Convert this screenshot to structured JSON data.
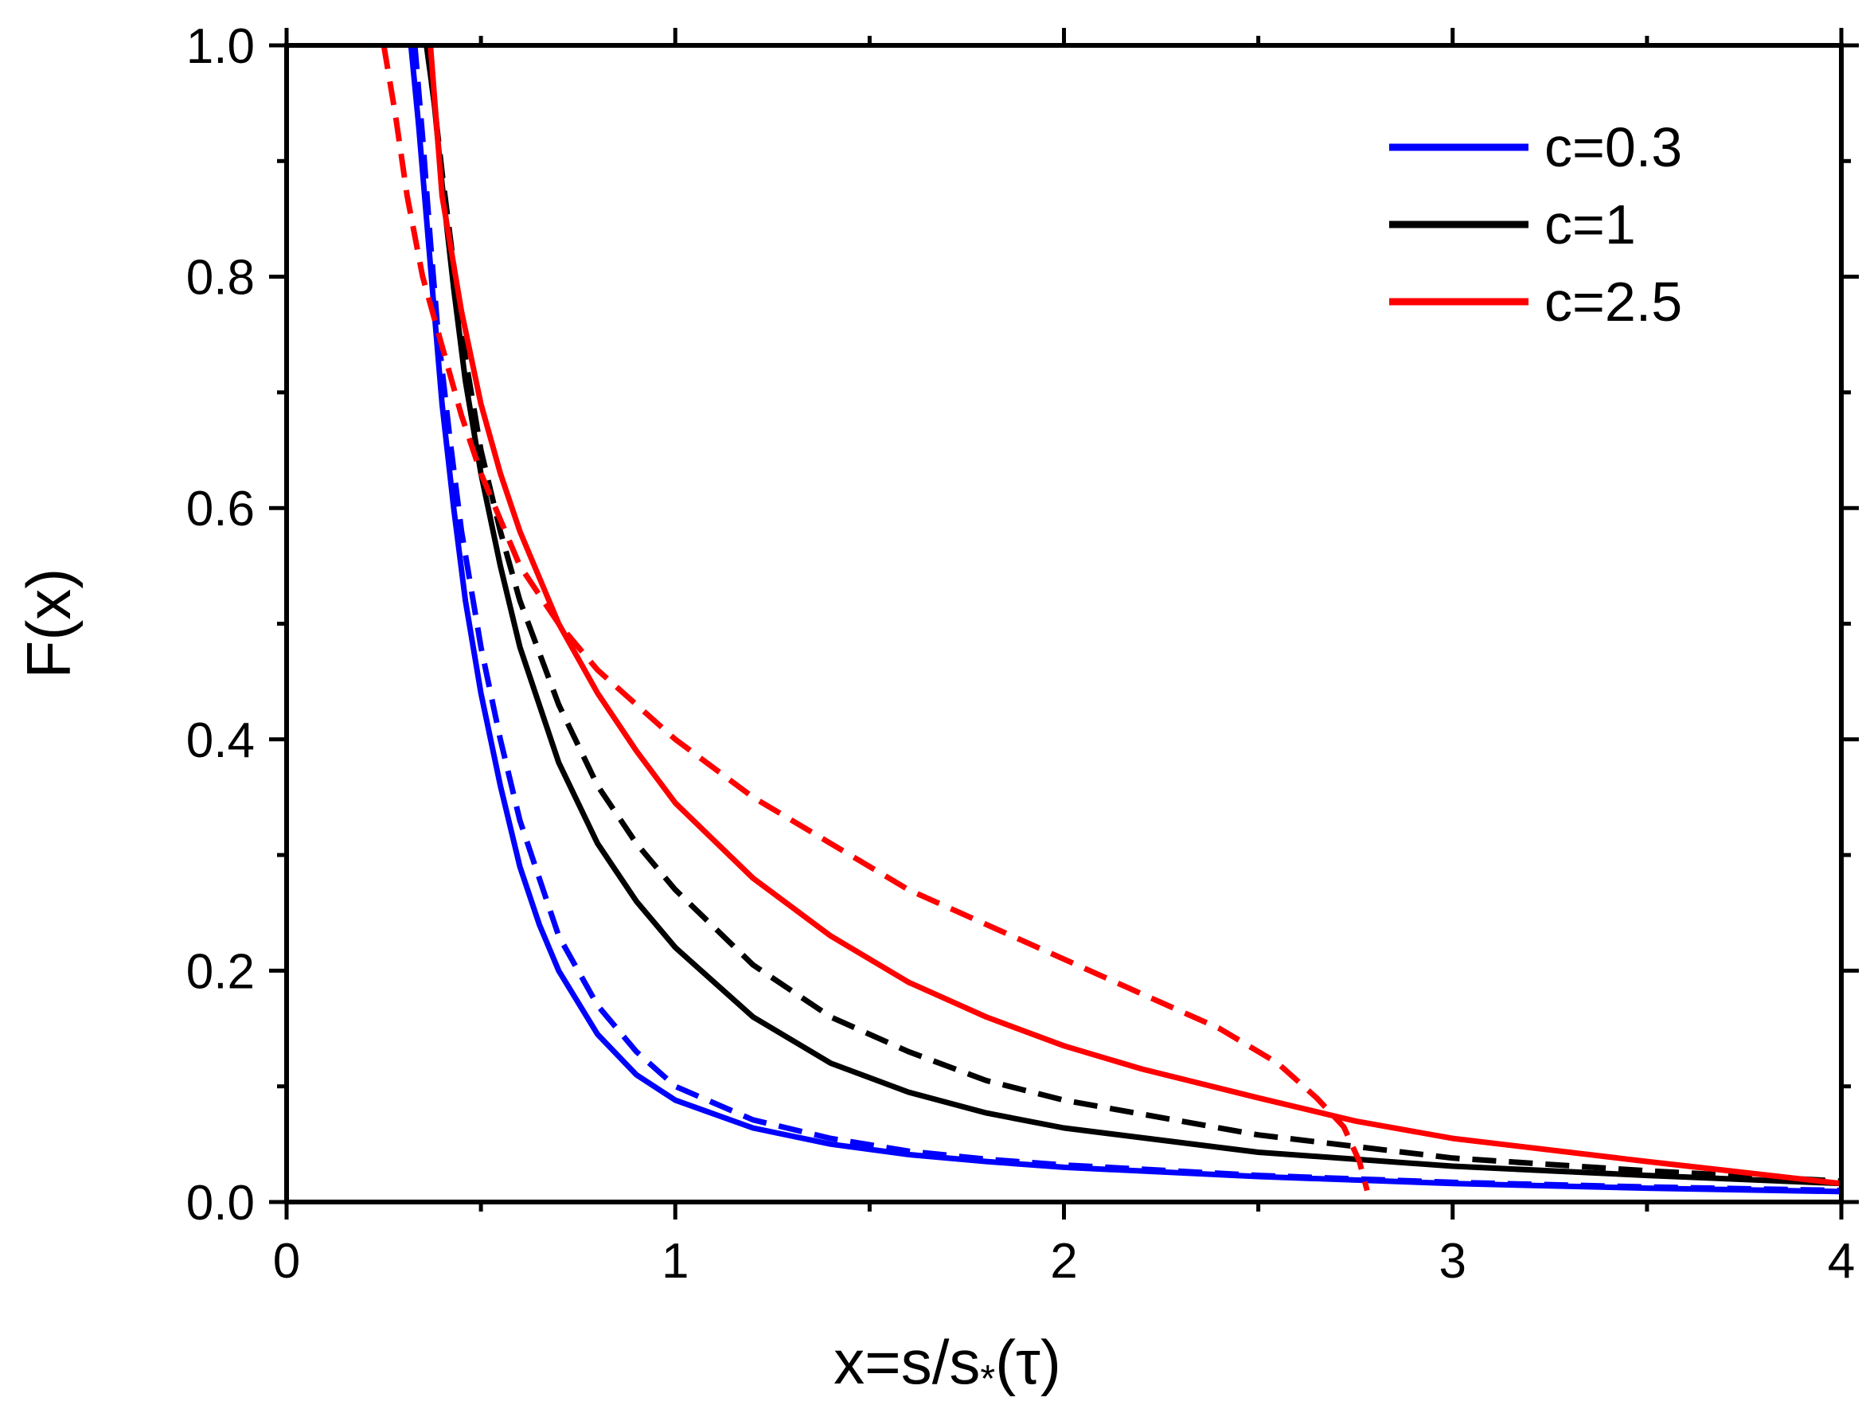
{
  "chart_data": {
    "type": "line",
    "title": "",
    "xlabel": "x=s/s",
    "xlabel_sub": "*",
    "xlabel_tail": "(τ)",
    "ylabel": "F(x)",
    "xlim": [
      0,
      4
    ],
    "ylim": [
      0,
      1
    ],
    "xticks": [
      0,
      1,
      2,
      3,
      4
    ],
    "xtick_labels": [
      "0",
      "1",
      "2",
      "3",
      "4"
    ],
    "yticks": [
      0,
      0.2,
      0.4,
      0.6,
      0.8,
      1.0
    ],
    "ytick_labels": [
      "0.0",
      "0.2",
      "0.4",
      "0.6",
      "0.8",
      "1.0"
    ],
    "legend_position": "top-right",
    "series": [
      {
        "name": "c=0.3",
        "color": "#0000ff",
        "style": "solid",
        "in_legend": true,
        "x": [
          0.32,
          0.34,
          0.36,
          0.38,
          0.4,
          0.43,
          0.46,
          0.5,
          0.55,
          0.6,
          0.65,
          0.7,
          0.8,
          0.9,
          1.0,
          1.2,
          1.4,
          1.6,
          1.8,
          2.0,
          2.5,
          3.0,
          3.5,
          4.0
        ],
        "y": [
          1.0,
          0.93,
          0.85,
          0.77,
          0.69,
          0.6,
          0.52,
          0.44,
          0.36,
          0.29,
          0.24,
          0.2,
          0.145,
          0.11,
          0.088,
          0.064,
          0.05,
          0.041,
          0.035,
          0.03,
          0.022,
          0.016,
          0.012,
          0.009
        ]
      },
      {
        "name": "c=0.3 (dashed)",
        "color": "#0000ff",
        "style": "dashed",
        "in_legend": false,
        "x": [
          0.33,
          0.35,
          0.37,
          0.39,
          0.42,
          0.45,
          0.5,
          0.55,
          0.6,
          0.65,
          0.7,
          0.8,
          0.9,
          1.0,
          1.2,
          1.4,
          1.6,
          1.8,
          2.0,
          2.5,
          3.0,
          3.5,
          4.0
        ],
        "y": [
          1.0,
          0.92,
          0.83,
          0.75,
          0.66,
          0.58,
          0.48,
          0.4,
          0.33,
          0.28,
          0.23,
          0.17,
          0.13,
          0.1,
          0.071,
          0.055,
          0.044,
          0.037,
          0.032,
          0.023,
          0.017,
          0.013,
          0.01
        ]
      },
      {
        "name": "c=1",
        "color": "#000000",
        "style": "solid",
        "in_legend": true,
        "x": [
          0.36,
          0.38,
          0.4,
          0.43,
          0.46,
          0.5,
          0.55,
          0.6,
          0.7,
          0.8,
          0.9,
          1.0,
          1.2,
          1.4,
          1.6,
          1.8,
          2.0,
          2.5,
          3.0,
          3.5,
          4.0
        ],
        "y": [
          1.0,
          0.95,
          0.88,
          0.79,
          0.71,
          0.63,
          0.55,
          0.48,
          0.38,
          0.31,
          0.26,
          0.22,
          0.16,
          0.12,
          0.095,
          0.077,
          0.064,
          0.043,
          0.031,
          0.023,
          0.016
        ]
      },
      {
        "name": "c=1 (dashed)",
        "color": "#000000",
        "style": "dashed",
        "in_legend": false,
        "x": [
          0.36,
          0.38,
          0.4,
          0.43,
          0.46,
          0.5,
          0.55,
          0.6,
          0.7,
          0.8,
          0.9,
          1.0,
          1.2,
          1.4,
          1.6,
          1.8,
          2.0,
          2.5,
          3.0,
          3.5,
          4.0
        ],
        "y": [
          1.0,
          0.95,
          0.89,
          0.81,
          0.73,
          0.65,
          0.58,
          0.52,
          0.43,
          0.36,
          0.31,
          0.27,
          0.205,
          0.16,
          0.13,
          0.105,
          0.088,
          0.058,
          0.038,
          0.027,
          0.018
        ]
      },
      {
        "name": "c=2.5",
        "color": "#ff0000",
        "style": "solid",
        "in_legend": true,
        "x": [
          0.37,
          0.4,
          0.45,
          0.5,
          0.55,
          0.6,
          0.7,
          0.8,
          0.9,
          1.0,
          1.2,
          1.4,
          1.6,
          1.8,
          2.0,
          2.2,
          2.5,
          2.75,
          3.0,
          3.5,
          4.0
        ],
        "y": [
          1.0,
          0.87,
          0.77,
          0.69,
          0.63,
          0.58,
          0.5,
          0.44,
          0.39,
          0.345,
          0.28,
          0.23,
          0.19,
          0.16,
          0.135,
          0.115,
          0.09,
          0.07,
          0.055,
          0.035,
          0.016
        ]
      },
      {
        "name": "c=2.5 (dashed)",
        "color": "#ff0000",
        "style": "dashed",
        "in_legend": false,
        "x": [
          0.25,
          0.28,
          0.31,
          0.35,
          0.4,
          0.45,
          0.5,
          0.55,
          0.6,
          0.7,
          0.8,
          1.0,
          1.2,
          1.4,
          1.6,
          1.8,
          2.0,
          2.2,
          2.4,
          2.55,
          2.65,
          2.72,
          2.76,
          2.78
        ],
        "y": [
          1.0,
          0.94,
          0.87,
          0.8,
          0.74,
          0.68,
          0.63,
          0.59,
          0.55,
          0.5,
          0.46,
          0.4,
          0.35,
          0.31,
          0.27,
          0.24,
          0.21,
          0.18,
          0.15,
          0.12,
          0.09,
          0.065,
          0.035,
          0.01
        ]
      }
    ]
  }
}
